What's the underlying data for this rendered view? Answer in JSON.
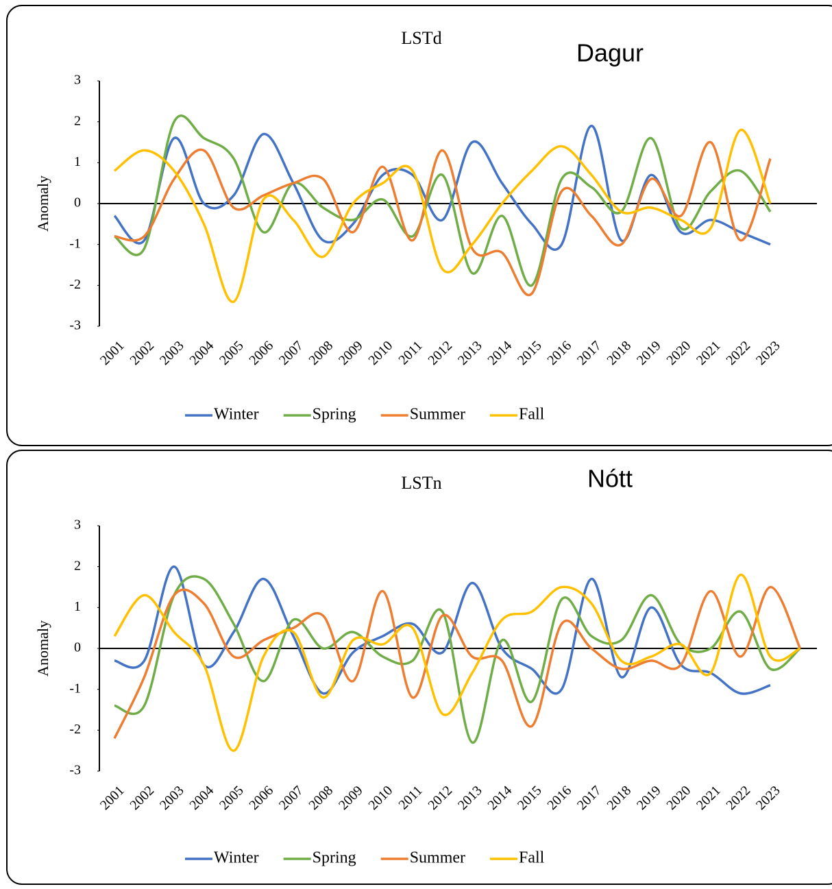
{
  "chart_data": [
    {
      "type": "line",
      "title": "LSTd",
      "annotation": "Dagur",
      "y_label": "Anomaly",
      "categories": [
        "2001",
        "2002",
        "2003",
        "2004",
        "2005",
        "2006",
        "2007",
        "2008",
        "2009",
        "2010",
        "2011",
        "2012",
        "2013",
        "2014",
        "2015",
        "2016",
        "2017",
        "2018",
        "2019",
        "2020",
        "2021",
        "2022",
        "2023"
      ],
      "series": [
        {
          "name": "Winter",
          "color": "#4472c4",
          "values": [
            -0.3,
            -0.9,
            1.6,
            0.0,
            0.2,
            1.7,
            0.5,
            -0.9,
            -0.5,
            0.7,
            0.7,
            -0.4,
            1.5,
            0.5,
            -0.5,
            -1.0,
            1.9,
            -0.9,
            0.7,
            -0.7,
            -0.4,
            -0.7,
            -1.0
          ]
        },
        {
          "name": "Spring",
          "color": "#70ad47",
          "values": [
            -0.8,
            -1.1,
            2.0,
            1.6,
            1.1,
            -0.7,
            0.5,
            -0.1,
            -0.4,
            0.1,
            -0.8,
            0.7,
            -1.7,
            -0.3,
            -2.0,
            0.6,
            0.4,
            -0.2,
            1.6,
            -0.6,
            0.3,
            0.8,
            -0.2
          ]
        },
        {
          "name": "Summer",
          "color": "#ed7d31",
          "values": [
            -0.8,
            -0.8,
            0.6,
            1.3,
            -0.1,
            0.2,
            0.5,
            0.6,
            -0.7,
            0.9,
            -0.9,
            1.3,
            -1.1,
            -1.2,
            -2.2,
            0.3,
            -0.3,
            -1.0,
            0.6,
            -0.3,
            1.5,
            -0.9,
            1.1
          ]
        },
        {
          "name": "Fall",
          "color": "#ffc000",
          "values": [
            0.8,
            1.3,
            0.8,
            -0.5,
            -2.4,
            0.1,
            -0.4,
            -1.3,
            0.0,
            0.5,
            0.8,
            -1.6,
            -1.0,
            0.0,
            0.8,
            1.4,
            0.7,
            -0.2,
            -0.1,
            -0.4,
            -0.6,
            1.8,
            0.0
          ]
        }
      ],
      "ylim": [
        -3,
        3
      ],
      "yticks": [
        -3,
        -2,
        -1,
        0,
        1,
        2,
        3
      ],
      "legend": "bottom"
    },
    {
      "type": "line",
      "title": "LSTn",
      "annotation": "Nótt",
      "y_label": "Anomaly",
      "categories": [
        "2001",
        "2002",
        "2003",
        "2004",
        "2005",
        "2006",
        "2007",
        "2008",
        "2009",
        "2010",
        "2011",
        "2012",
        "2013",
        "2014",
        "2015",
        "2016",
        "2017",
        "2018",
        "2019",
        "2020",
        "2021",
        "2022",
        "2023",
        null
      ],
      "series": [
        {
          "name": "Winter",
          "color": "#4472c4",
          "values": [
            -0.3,
            -0.3,
            2.0,
            -0.4,
            0.4,
            1.7,
            0.3,
            -1.1,
            -0.1,
            0.3,
            0.6,
            -0.1,
            1.6,
            0.0,
            -0.5,
            -1.0,
            1.7,
            -0.7,
            1.0,
            -0.4,
            -0.6,
            -1.1,
            -0.9,
            null
          ]
        },
        {
          "name": "Spring",
          "color": "#70ad47",
          "values": [
            -1.4,
            -1.4,
            1.3,
            1.7,
            0.6,
            -0.8,
            0.7,
            0.0,
            0.4,
            -0.2,
            -0.3,
            0.9,
            -2.3,
            0.2,
            -1.3,
            1.2,
            0.3,
            0.2,
            1.3,
            0.1,
            0.0,
            0.9,
            -0.5,
            0.0
          ]
        },
        {
          "name": "Summer",
          "color": "#ed7d31",
          "values": [
            -2.2,
            -0.7,
            1.3,
            1.1,
            -0.2,
            0.2,
            0.5,
            0.8,
            -0.8,
            1.4,
            -1.2,
            0.8,
            -0.2,
            -0.3,
            -1.9,
            0.6,
            0.0,
            -0.5,
            -0.3,
            -0.4,
            1.4,
            -0.2,
            1.5,
            0.0
          ]
        },
        {
          "name": "Fall",
          "color": "#ffc000",
          "values": [
            0.3,
            1.3,
            0.4,
            -0.4,
            -2.5,
            -0.2,
            0.4,
            -1.2,
            0.2,
            0.1,
            0.5,
            -1.6,
            -0.6,
            0.7,
            0.9,
            1.5,
            1.1,
            -0.3,
            -0.2,
            0.1,
            -0.6,
            1.8,
            -0.2,
            0.0
          ]
        }
      ],
      "ylim": [
        -3,
        3
      ],
      "yticks": [
        -3,
        -2,
        -1,
        0,
        1,
        2,
        3
      ],
      "legend": "bottom"
    }
  ]
}
